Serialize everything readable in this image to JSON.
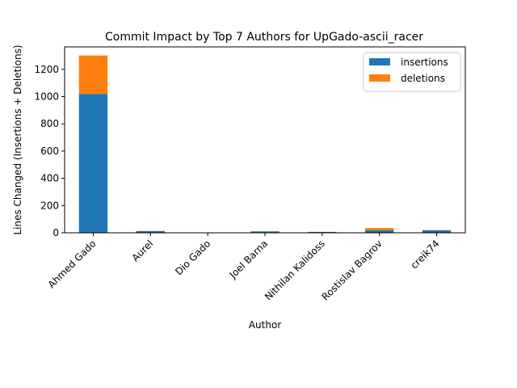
{
  "chart_data": {
    "type": "bar",
    "stacked": true,
    "title": "Commit Impact by Top 7 Authors for UpGado-ascii_racer",
    "xlabel": "Author",
    "ylabel": "Lines Changed (Insertions + Deletions)",
    "categories": [
      "Ahmed Gado",
      "Aurel",
      "Dio Gado",
      "Joel Barna",
      "Nithilan Kalidoss",
      "Rostislav Bagrov",
      "creik74"
    ],
    "series": [
      {
        "name": "insertions",
        "color": "#1f77b4",
        "values": [
          1020,
          12,
          1,
          10,
          6,
          18,
          18
        ]
      },
      {
        "name": "deletions",
        "color": "#ff7f0e",
        "values": [
          282,
          2,
          0,
          2,
          1,
          17,
          2
        ]
      }
    ],
    "ylim": [
      0,
      1365
    ],
    "yticks": [
      0,
      200,
      400,
      600,
      800,
      1000,
      1200
    ],
    "grid": false,
    "legend_position": "top-right"
  }
}
